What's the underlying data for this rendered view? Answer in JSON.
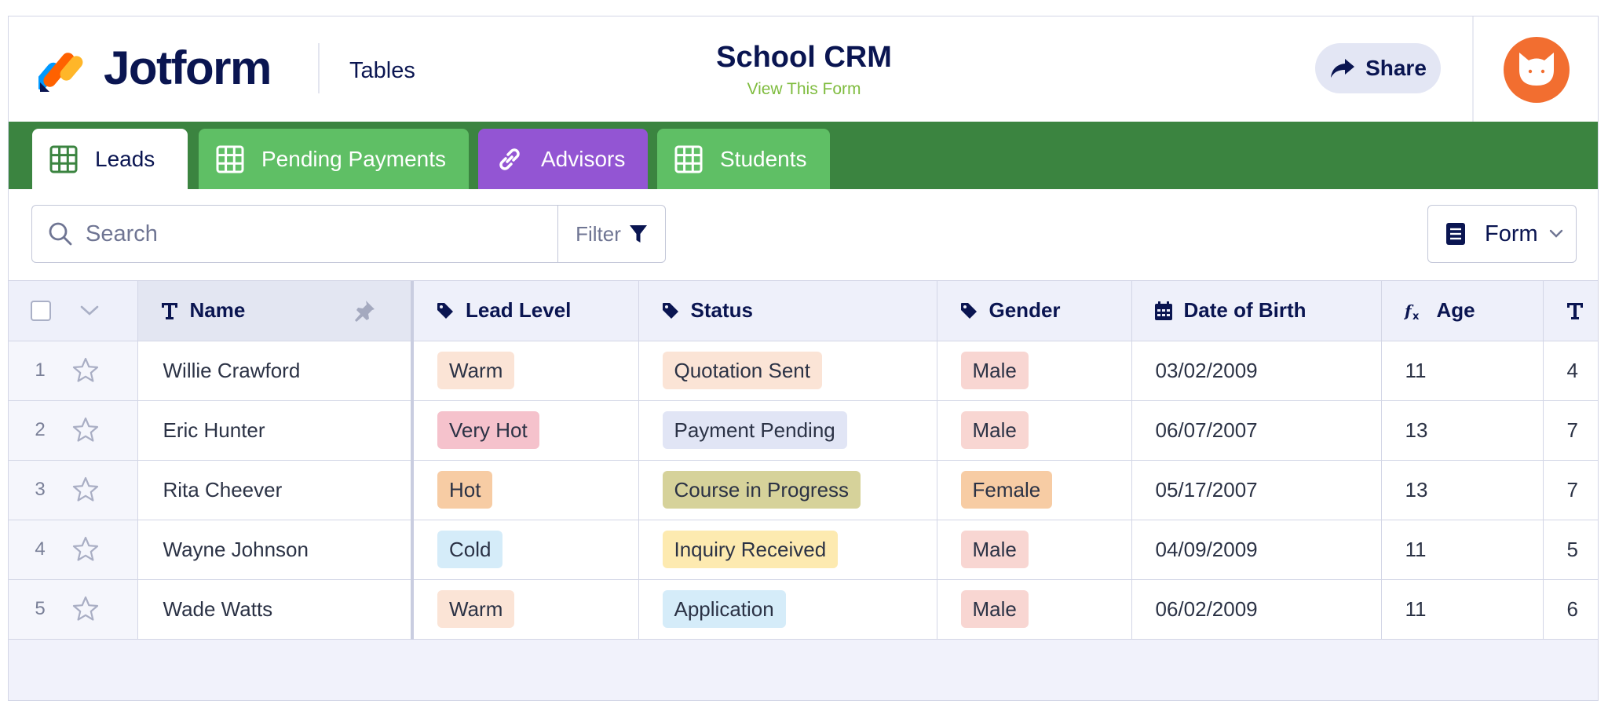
{
  "header": {
    "brand": "Jotform",
    "section_link": "Tables",
    "form_title": "School CRM",
    "view_form_link": "View This Form",
    "share_label": "Share"
  },
  "tabs": [
    {
      "label": "Leads",
      "icon": "grid-icon",
      "color": "#ffffff",
      "active": true
    },
    {
      "label": "Pending Payments",
      "icon": "grid-icon",
      "color": "#5fbf65"
    },
    {
      "label": "Advisors",
      "icon": "link-icon",
      "color": "#9355d3"
    },
    {
      "label": "Students",
      "icon": "grid-icon",
      "color": "#5fbf65"
    }
  ],
  "toolbar": {
    "search_placeholder": "Search",
    "filter_label": "Filter",
    "form_label": "Form"
  },
  "table": {
    "columns": [
      {
        "label": "Name",
        "icon": "text-type-icon",
        "pinned": true
      },
      {
        "label": "Lead Level",
        "icon": "tag-icon"
      },
      {
        "label": "Status",
        "icon": "tag-icon"
      },
      {
        "label": "Gender",
        "icon": "tag-icon"
      },
      {
        "label": "Date of Birth",
        "icon": "calendar-icon"
      },
      {
        "label": "Age",
        "icon": "formula-icon"
      },
      {
        "label": "",
        "icon": "text-type-icon"
      }
    ],
    "rows": [
      {
        "num": "1",
        "name": "Willie Crawford",
        "lead_level": "Warm",
        "status": "Quotation Sent",
        "gender": "Male",
        "dob": "03/02/2009",
        "age": "11",
        "extra": "4"
      },
      {
        "num": "2",
        "name": "Eric Hunter",
        "lead_level": "Very Hot",
        "status": "Payment Pending",
        "gender": "Male",
        "dob": "06/07/2007",
        "age": "13",
        "extra": "7"
      },
      {
        "num": "3",
        "name": "Rita Cheever",
        "lead_level": "Hot",
        "status": "Course in Progress",
        "gender": "Female",
        "dob": "05/17/2007",
        "age": "13",
        "extra": "7"
      },
      {
        "num": "4",
        "name": "Wayne Johnson",
        "lead_level": "Cold",
        "status": "Inquiry Received",
        "gender": "Male",
        "dob": "04/09/2009",
        "age": "11",
        "extra": "5"
      },
      {
        "num": "5",
        "name": "Wade Watts",
        "lead_level": "Warm",
        "status": "Application",
        "gender": "Male",
        "dob": "06/02/2009",
        "age": "11",
        "extra": "6"
      }
    ]
  },
  "pill_colors": {
    "Warm": "#fbe4d6",
    "Very Hot": "#f5c2cc",
    "Hot": "#f7cca4",
    "Cold": "#d5ecf9",
    "Quotation Sent": "#fbe4d6",
    "Payment Pending": "#e1e5f5",
    "Course in Progress": "#d6d29a",
    "Inquiry Received": "#fdeab0",
    "Application": "#d5ecf9",
    "Male": "#f8d6d2",
    "Female": "#f7cca4"
  },
  "colors": {
    "tab_bar": "#3b8440",
    "brand_text": "#0a1551",
    "view_form_link": "#7fbc3f",
    "avatar": "#f26e30"
  }
}
